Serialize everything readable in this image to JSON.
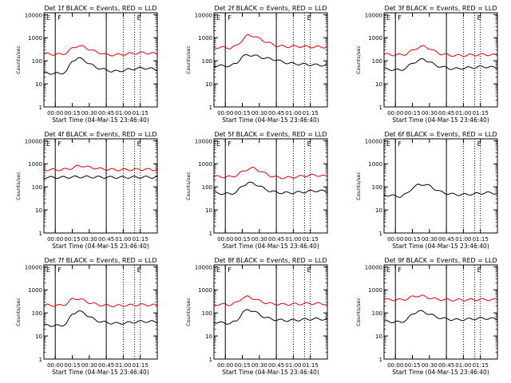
{
  "figure": {
    "xlabel": "Start Time (04-Mar-15 23:46:40)",
    "ylabel": "Counts/sec",
    "series_names": [
      "Events",
      "LLD"
    ],
    "series_colors": {
      "Events": "#000000",
      "LLD": "#dd0000"
    },
    "xticks": [
      "00:00",
      "00:15",
      "00:30",
      "00:45",
      "01:00",
      "01:15"
    ],
    "yticks": [
      "1",
      "10",
      "100",
      "1000",
      "10000"
    ],
    "marker_labels": [
      "E",
      "F",
      "E"
    ]
  },
  "chart_data": [
    {
      "type": "line",
      "title": "Det 1f BLACK = Events, RED = LLD",
      "xlim": [
        -10,
        90
      ],
      "ylim": [
        1,
        12000
      ],
      "yscale": "log",
      "markers": {
        "solid": [
          0,
          45
        ],
        "dotted": [
          60,
          70,
          75
        ],
        "labels": [
          "E",
          "F",
          "E"
        ]
      },
      "x": [
        -10,
        0,
        5,
        10,
        15,
        20,
        25,
        30,
        35,
        40,
        45,
        50,
        55,
        60,
        65,
        70,
        75,
        80,
        85,
        90
      ],
      "series": [
        {
          "name": "LLD",
          "values": [
            200,
            190,
            190,
            220,
            350,
            450,
            400,
            320,
            250,
            220,
            180,
            180,
            180,
            190,
            200,
            210,
            220,
            220,
            210,
            200
          ]
        },
        {
          "name": "Events",
          "values": [
            30,
            28,
            28,
            35,
            100,
            130,
            110,
            75,
            55,
            45,
            40,
            35,
            35,
            38,
            42,
            45,
            48,
            48,
            45,
            40
          ]
        }
      ]
    },
    {
      "type": "line",
      "title": "Det 2f BLACK = Events, RED = LLD",
      "xlim": [
        -10,
        90
      ],
      "ylim": [
        1,
        12000
      ],
      "yscale": "log",
      "markers": {
        "solid": [
          0,
          45
        ],
        "dotted": [
          60,
          70,
          75
        ],
        "labels": [
          "E",
          "F",
          "E"
        ]
      },
      "x": [
        -10,
        0,
        5,
        10,
        15,
        20,
        25,
        30,
        35,
        40,
        45,
        50,
        55,
        60,
        65,
        70,
        75,
        80,
        85,
        90
      ],
      "series": [
        {
          "name": "LLD",
          "values": [
            380,
            370,
            360,
            450,
            800,
            1300,
            1200,
            900,
            700,
            550,
            450,
            420,
            410,
            420,
            420,
            410,
            400,
            400,
            400,
            390
          ]
        },
        {
          "name": "Events",
          "values": [
            60,
            60,
            60,
            80,
            150,
            180,
            170,
            150,
            130,
            120,
            110,
            90,
            80,
            75,
            72,
            70,
            68,
            66,
            65,
            65
          ]
        }
      ]
    },
    {
      "type": "line",
      "title": "Det 3f BLACK = Events, RED = LLD",
      "xlim": [
        -10,
        90
      ],
      "ylim": [
        1,
        12000
      ],
      "yscale": "log",
      "markers": {
        "solid": [
          0,
          45
        ],
        "dotted": [
          60,
          70,
          75
        ],
        "labels": [
          "E",
          "F",
          "E"
        ]
      },
      "x": [
        -10,
        0,
        5,
        10,
        15,
        20,
        25,
        30,
        35,
        40,
        45,
        50,
        55,
        60,
        65,
        70,
        75,
        80,
        85,
        90
      ],
      "series": [
        {
          "name": "LLD",
          "values": [
            190,
            180,
            180,
            200,
            280,
            380,
            420,
            350,
            250,
            200,
            180,
            170,
            170,
            170,
            175,
            180,
            185,
            185,
            180,
            170
          ]
        },
        {
          "name": "Events",
          "values": [
            45,
            40,
            40,
            50,
            80,
            100,
            120,
            90,
            65,
            55,
            50,
            45,
            45,
            48,
            50,
            52,
            55,
            55,
            52,
            50
          ]
        }
      ]
    },
    {
      "type": "line",
      "title": "Det 4f BLACK = Events, RED = LLD",
      "xlim": [
        -10,
        90
      ],
      "ylim": [
        1,
        12000
      ],
      "yscale": "log",
      "markers": {
        "solid": [
          0,
          45
        ],
        "dotted": [
          60,
          70,
          75
        ],
        "labels": [
          "E",
          "F",
          "E"
        ]
      },
      "x": [
        -10,
        0,
        5,
        10,
        15,
        20,
        25,
        30,
        35,
        40,
        45,
        50,
        55,
        60,
        65,
        70,
        75,
        80,
        85,
        90
      ],
      "series": [
        {
          "name": "LLD",
          "values": [
            550,
            550,
            550,
            580,
            650,
            800,
            800,
            700,
            650,
            600,
            580,
            560,
            550,
            550,
            560,
            560,
            570,
            570,
            560,
            550
          ]
        },
        {
          "name": "Events",
          "values": [
            260,
            255,
            255,
            260,
            265,
            270,
            270,
            268,
            265,
            262,
            260,
            258,
            258,
            258,
            260,
            260,
            262,
            262,
            260,
            258
          ]
        }
      ]
    },
    {
      "type": "line",
      "title": "Det 5f BLACK = Events, RED = LLD",
      "xlim": [
        -10,
        90
      ],
      "ylim": [
        1,
        12000
      ],
      "yscale": "log",
      "markers": {
        "solid": [
          0,
          45
        ],
        "dotted": [
          60,
          70,
          75
        ],
        "labels": [
          "E",
          "F",
          "E"
        ]
      },
      "x": [
        -10,
        0,
        5,
        10,
        15,
        20,
        25,
        30,
        35,
        40,
        45,
        50,
        55,
        60,
        65,
        70,
        75,
        80,
        85,
        90
      ],
      "series": [
        {
          "name": "LLD",
          "values": [
            280,
            270,
            270,
            320,
            450,
            600,
            650,
            500,
            380,
            300,
            260,
            250,
            250,
            260,
            280,
            300,
            320,
            320,
            300,
            280
          ]
        },
        {
          "name": "Events",
          "values": [
            55,
            50,
            50,
            60,
            110,
            150,
            140,
            110,
            80,
            65,
            58,
            55,
            55,
            56,
            58,
            60,
            65,
            68,
            66,
            62
          ]
        }
      ]
    },
    {
      "type": "line",
      "title": "Det 6f BLACK = Events, RED = LLD",
      "xlim": [
        -10,
        90
      ],
      "ylim": [
        1,
        12000
      ],
      "yscale": "log",
      "markers": {
        "solid": [
          0,
          45
        ],
        "dotted": [
          60,
          70,
          75
        ],
        "labels": [
          "E",
          "F",
          "E"
        ]
      },
      "x": [
        -10,
        0,
        5,
        10,
        15,
        20,
        25,
        30,
        35,
        40,
        45,
        50,
        55,
        60,
        65,
        70,
        75,
        80,
        85,
        90
      ],
      "series": [
        {
          "name": "Events",
          "values": [
            45,
            40,
            38,
            50,
            90,
            120,
            130,
            110,
            80,
            60,
            52,
            48,
            46,
            46,
            48,
            50,
            52,
            55,
            55,
            52
          ]
        }
      ]
    },
    {
      "type": "line",
      "title": "Det 7f BLACK = Events, RED = LLD",
      "xlim": [
        -10,
        90
      ],
      "ylim": [
        1,
        12000
      ],
      "yscale": "log",
      "markers": {
        "solid": [
          0,
          45
        ],
        "dotted": [
          60,
          70,
          75
        ],
        "labels": [
          "E",
          "F",
          "E"
        ]
      },
      "x": [
        -10,
        0,
        5,
        10,
        15,
        20,
        25,
        30,
        35,
        40,
        45,
        50,
        55,
        60,
        65,
        70,
        75,
        80,
        85,
        90
      ],
      "series": [
        {
          "name": "LLD",
          "values": [
            220,
            210,
            210,
            250,
            400,
            420,
            350,
            280,
            240,
            220,
            210,
            205,
            205,
            210,
            215,
            220,
            225,
            225,
            220,
            215
          ]
        },
        {
          "name": "Events",
          "values": [
            30,
            28,
            28,
            35,
            90,
            120,
            100,
            70,
            50,
            42,
            38,
            36,
            35,
            36,
            38,
            40,
            42,
            43,
            42,
            40
          ]
        }
      ]
    },
    {
      "type": "line",
      "title": "Det 8f BLACK = Events, RED = LLD",
      "xlim": [
        -10,
        90
      ],
      "ylim": [
        1,
        12000
      ],
      "yscale": "log",
      "markers": {
        "solid": [
          0,
          45
        ],
        "dotted": [
          60,
          70,
          75
        ],
        "labels": [
          "E",
          "F",
          "E"
        ]
      },
      "x": [
        -10,
        0,
        5,
        10,
        15,
        20,
        25,
        30,
        35,
        40,
        45,
        50,
        55,
        60,
        65,
        70,
        75,
        80,
        85,
        90
      ],
      "series": [
        {
          "name": "LLD",
          "values": [
            240,
            230,
            230,
            280,
            450,
            500,
            420,
            330,
            280,
            250,
            240,
            235,
            235,
            240,
            245,
            250,
            255,
            255,
            250,
            245
          ]
        },
        {
          "name": "Events",
          "values": [
            40,
            36,
            36,
            45,
            100,
            140,
            120,
            85,
            65,
            55,
            50,
            48,
            47,
            48,
            50,
            52,
            54,
            55,
            54,
            52
          ]
        }
      ]
    },
    {
      "type": "line",
      "title": "Det 9f BLACK = Events, RED = LLD",
      "xlim": [
        -10,
        90
      ],
      "ylim": [
        1,
        12000
      ],
      "yscale": "log",
      "markers": {
        "solid": [
          0,
          45
        ],
        "dotted": [
          60,
          70,
          75
        ],
        "labels": [
          "E",
          "F",
          "E"
        ]
      },
      "x": [
        -10,
        0,
        5,
        10,
        15,
        20,
        25,
        30,
        35,
        40,
        45,
        50,
        55,
        60,
        65,
        70,
        75,
        80,
        85,
        90
      ],
      "series": [
        {
          "name": "LLD",
          "values": [
            380,
            370,
            370,
            400,
            500,
            560,
            520,
            450,
            400,
            380,
            370,
            365,
            365,
            368,
            370,
            375,
            380,
            380,
            375,
            370
          ]
        },
        {
          "name": "Events",
          "values": [
            45,
            40,
            40,
            50,
            90,
            120,
            110,
            90,
            70,
            60,
            55,
            52,
            50,
            52,
            54,
            56,
            58,
            58,
            56,
            54
          ]
        }
      ]
    }
  ]
}
